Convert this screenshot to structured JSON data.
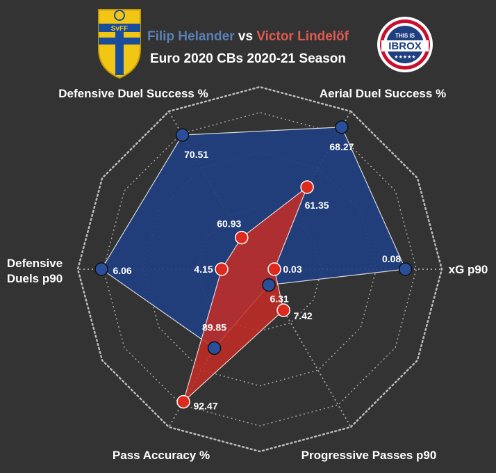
{
  "header": {
    "player1": "Filip Helander",
    "vs": "vs",
    "player2": "Victor Lindelöf",
    "subtitle": "Euro 2020 CBs 2020-21 Season"
  },
  "logos": {
    "left": {
      "name": "sweden-football-crest",
      "text": "SvFF"
    },
    "right": {
      "name": "this-is-ibrox-logo",
      "top_text": "THIS IS",
      "main_text": "IBROX",
      "stars": "★★★★★"
    }
  },
  "colors": {
    "background": "#333333",
    "player1_fill": "#1f3f80",
    "player1_marker": "#2a4f9a",
    "player2_fill": "#c62d24",
    "player2_marker": "#dd2a1f",
    "grid": "#bbbbbb"
  },
  "chart_data": {
    "type": "radar",
    "axes": [
      "Aerial Duel Success %",
      "xG p90",
      "Progressive Passes p90",
      "Pass Accuracy %",
      "Defensive Duels p90",
      "Defensive Duel Success %"
    ],
    "axis_label_lines": [
      [
        "Aerial Duel Success %"
      ],
      [
        "xG p90"
      ],
      [
        "Progressive Passes p90"
      ],
      [
        "Pass Accuracy %"
      ],
      [
        "Defensive",
        "Duels p90"
      ],
      [
        "Defensive Duel Success %"
      ]
    ],
    "series": [
      {
        "name": "Filip Helander",
        "values": [
          68.27,
          0.08,
          6.31,
          89.85,
          6.06,
          70.51
        ],
        "labels": [
          "68.27",
          "0.08",
          "6.31",
          "89.85",
          "6.06",
          "70.51"
        ],
        "relative": [
          0.9,
          0.8,
          0.1,
          0.5,
          0.87,
          0.85
        ]
      },
      {
        "name": "Victor Lindelöf",
        "values": [
          61.35,
          0.03,
          7.42,
          92.47,
          4.15,
          60.93
        ],
        "labels": [
          "61.35",
          "0.03",
          "7.42",
          "92.47",
          "4.15",
          "60.93"
        ],
        "relative": [
          0.52,
          0.08,
          0.26,
          0.84,
          0.21,
          0.2
        ]
      }
    ],
    "rings": 4,
    "grid": true
  }
}
